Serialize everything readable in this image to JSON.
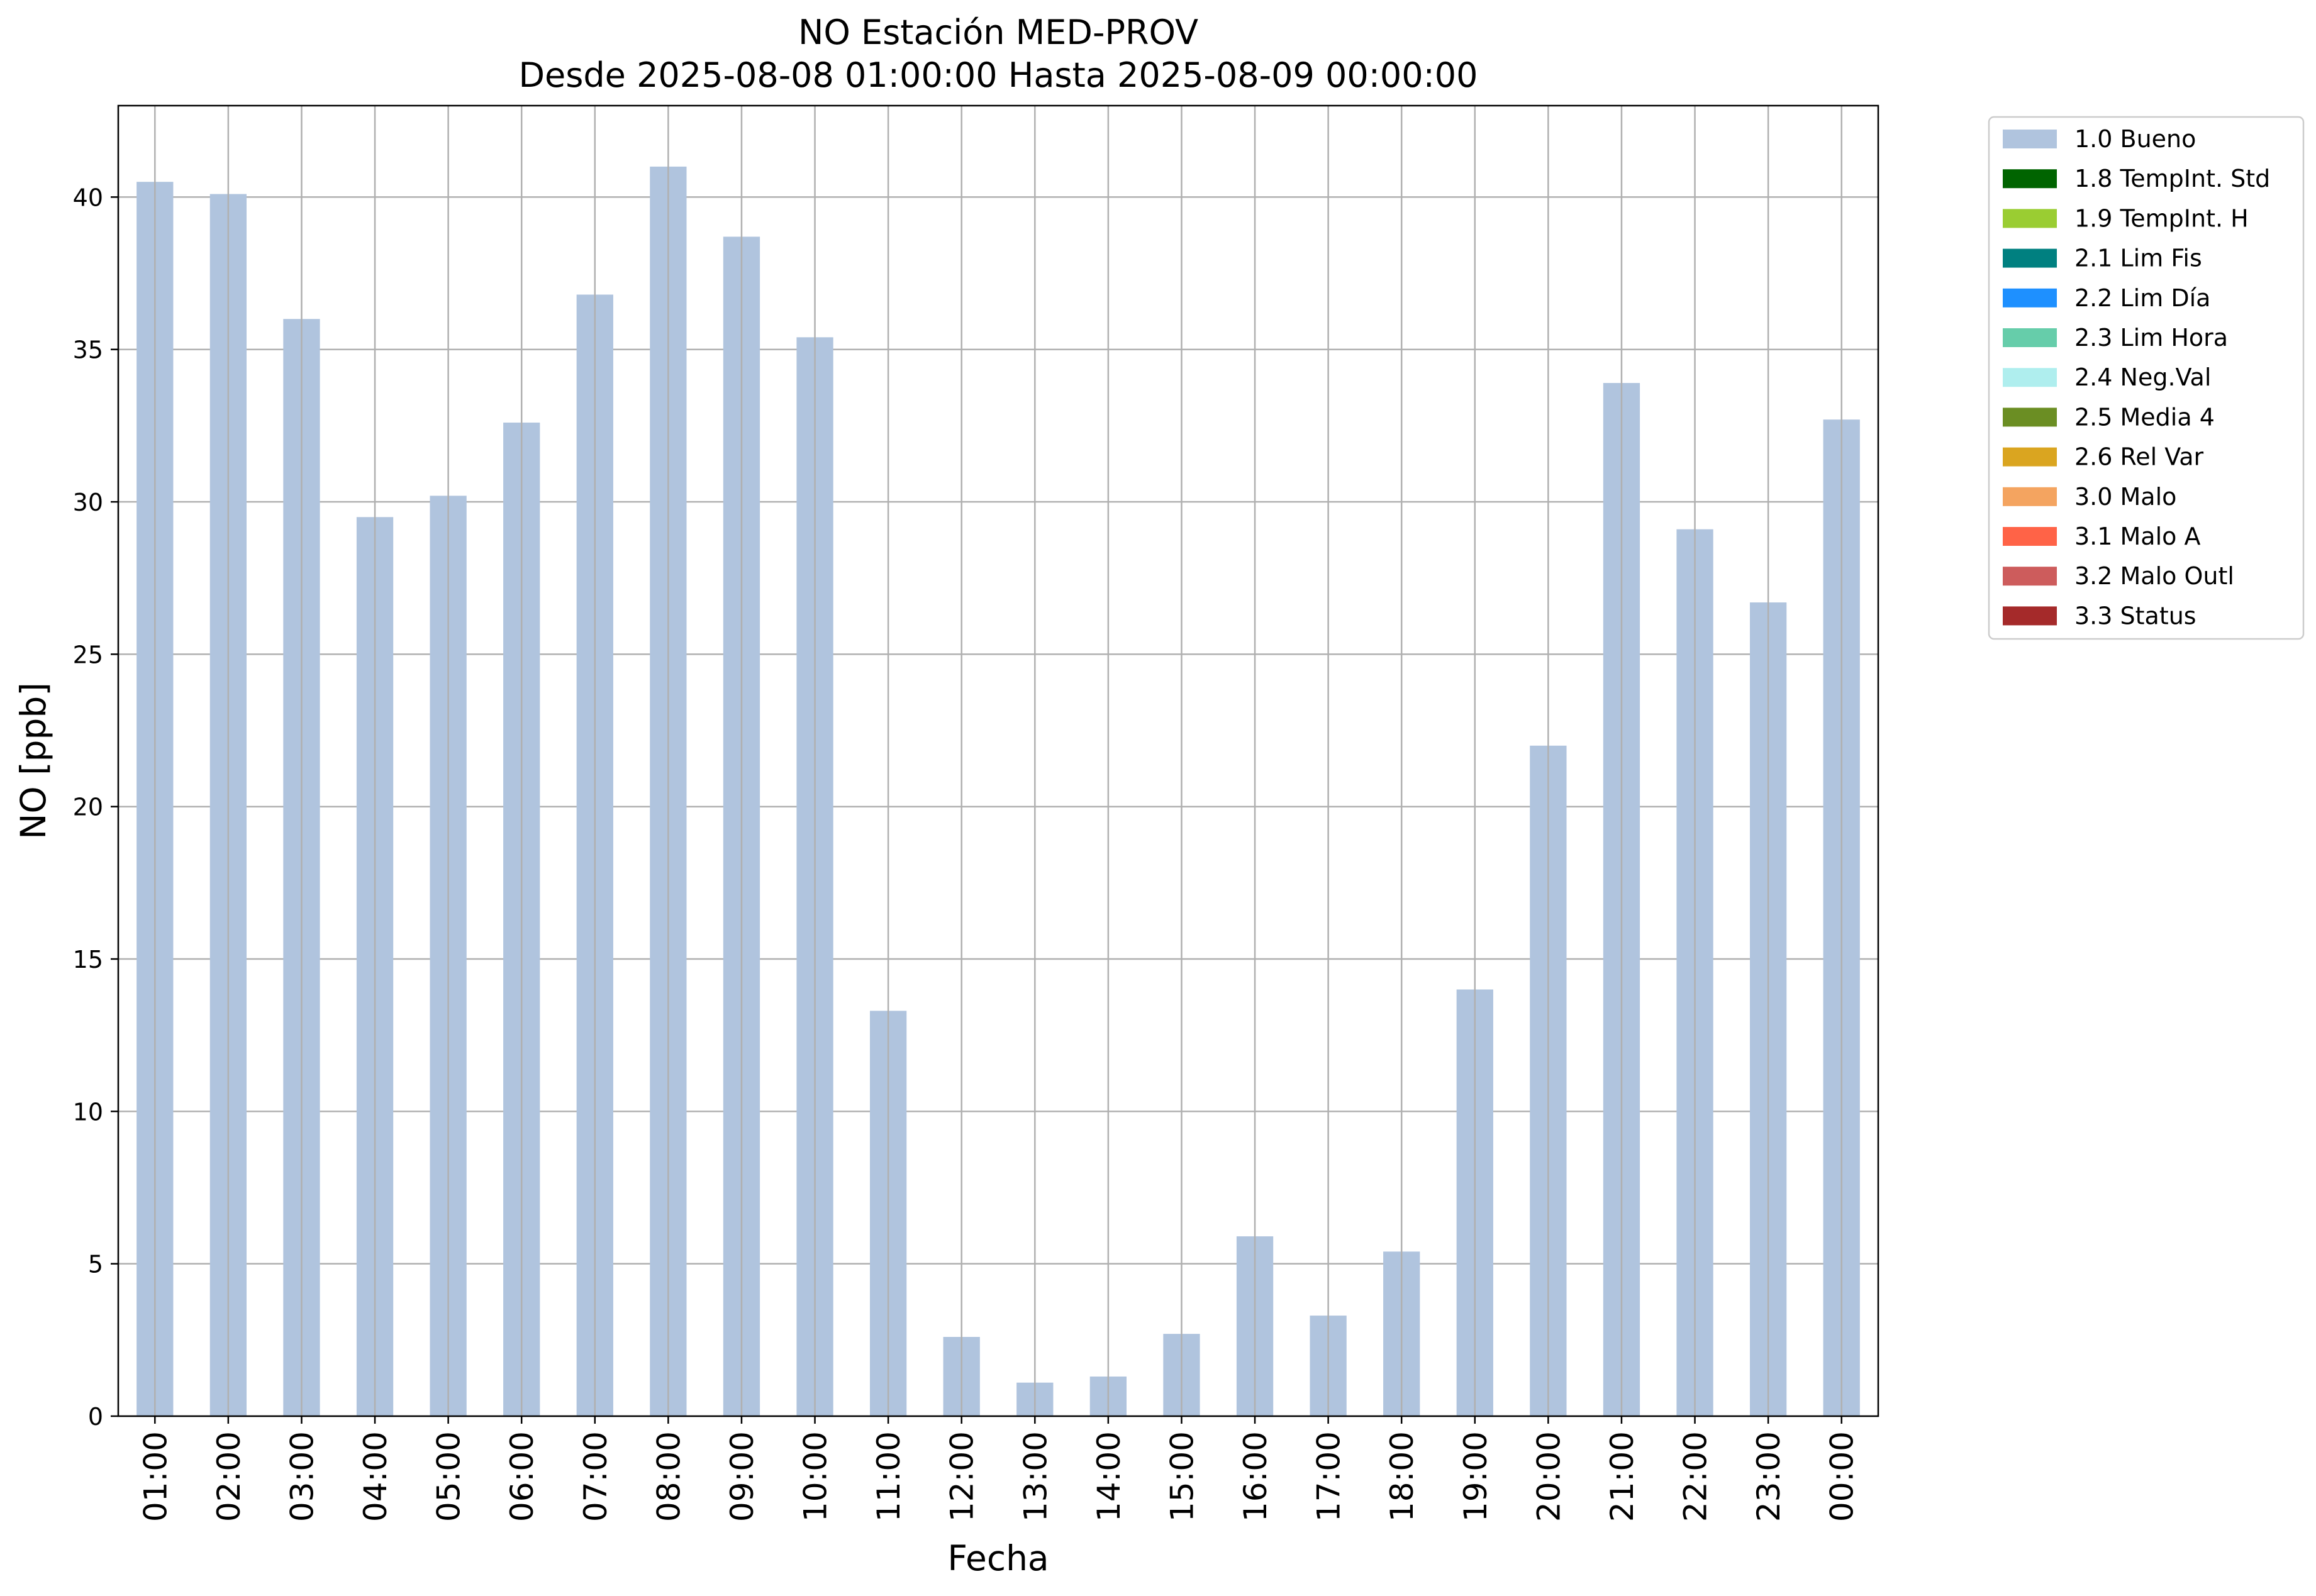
{
  "chart_data": {
    "type": "bar",
    "title": "NO Estación MED-PROV",
    "subtitle": "Desde 2025-08-08 01:00:00 Hasta 2025-08-09 00:00:00",
    "xlabel": "Fecha",
    "ylabel": "NO [ppb]",
    "categories": [
      "01:00",
      "02:00",
      "03:00",
      "04:00",
      "05:00",
      "06:00",
      "07:00",
      "08:00",
      "09:00",
      "10:00",
      "11:00",
      "12:00",
      "13:00",
      "14:00",
      "15:00",
      "16:00",
      "17:00",
      "18:00",
      "19:00",
      "20:00",
      "21:00",
      "22:00",
      "23:00",
      "00:00"
    ],
    "series": [
      {
        "name": "1.0 Bueno",
        "color": "#b0c4de",
        "values": [
          40.5,
          40.1,
          36.0,
          29.5,
          30.2,
          32.6,
          36.8,
          41.0,
          38.7,
          35.4,
          13.3,
          2.6,
          1.1,
          1.3,
          2.7,
          5.9,
          3.3,
          5.4,
          14.0,
          22.0,
          33.9,
          29.1,
          26.7,
          32.7
        ]
      }
    ],
    "ylim": [
      0,
      43
    ],
    "yticks": [
      0,
      5,
      10,
      15,
      20,
      25,
      30,
      35,
      40
    ],
    "grid": true,
    "legend_position": "outside-top-right",
    "legend": [
      {
        "label": "1.0 Bueno",
        "color": "#b0c4de"
      },
      {
        "label": "1.8 TempInt. Std",
        "color": "#006400"
      },
      {
        "label": "1.9 TempInt. H",
        "color": "#9acd32"
      },
      {
        "label": "2.1 Lim Fis",
        "color": "#008080"
      },
      {
        "label": "2.2 Lim Día",
        "color": "#1e90ff"
      },
      {
        "label": "2.3 Lim Hora",
        "color": "#66cdaa"
      },
      {
        "label": "2.4 Neg.Val",
        "color": "#afeeee"
      },
      {
        "label": "2.5 Media 4",
        "color": "#6b8e23"
      },
      {
        "label": "2.6 Rel Var",
        "color": "#daa520"
      },
      {
        "label": "3.0 Malo",
        "color": "#f4a460"
      },
      {
        "label": "3.1 Malo A",
        "color": "#ff6347"
      },
      {
        "label": "3.2 Malo Outl",
        "color": "#cd5c5c"
      },
      {
        "label": "3.3 Status",
        "color": "#a52a2a"
      }
    ]
  }
}
